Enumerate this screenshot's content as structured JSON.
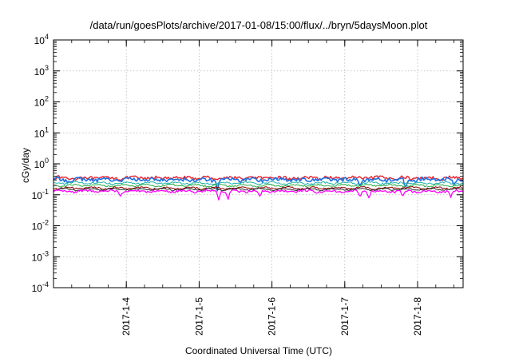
{
  "chart_data": {
    "type": "line",
    "title": "/data/run/goesPlots/archive/2017-01-08/15:00/flux/../bryn/5daysMoon.plot",
    "xlabel": "Coordinated Universal Time (UTC)",
    "ylabel": "cGy/day",
    "yscale": "log",
    "ylim": [
      0.0001,
      10000
    ],
    "yticks": [
      {
        "value": 0.0001,
        "base": "10",
        "exp": "-4"
      },
      {
        "value": 0.001,
        "base": "10",
        "exp": "-3"
      },
      {
        "value": 0.01,
        "base": "10",
        "exp": "-2"
      },
      {
        "value": 0.1,
        "base": "10",
        "exp": "-1"
      },
      {
        "value": 1,
        "base": "10",
        "exp": "0"
      },
      {
        "value": 10,
        "base": "10",
        "exp": "1"
      },
      {
        "value": 100,
        "base": "10",
        "exp": "2"
      },
      {
        "value": 1000,
        "base": "10",
        "exp": "3"
      },
      {
        "value": 10000,
        "base": "10",
        "exp": "4"
      }
    ],
    "xlim": [
      "2017-01-03T00:00",
      "2017-01-08T15:00"
    ],
    "xticks": [
      {
        "value": "2017-01-04T00:00",
        "label": "2017-1-4"
      },
      {
        "value": "2017-01-05T00:00",
        "label": "2017-1-5"
      },
      {
        "value": "2017-01-06T00:00",
        "label": "2017-1-6"
      },
      {
        "value": "2017-01-07T00:00",
        "label": "2017-1-7"
      },
      {
        "value": "2017-01-08T00:00",
        "label": "2017-1-8"
      }
    ],
    "grid": true,
    "series": [
      {
        "color": "#e8202a",
        "base": 0.35,
        "jitter": 0.12,
        "dips": [],
        "width": 1.4
      },
      {
        "color": "#1f6fe0",
        "base": 0.31,
        "jitter": 0.14,
        "dips": [
          [
            "2017-01-05T06:00",
            0.5
          ],
          [
            "2017-01-07T05:00",
            0.6
          ],
          [
            "2017-01-07T20:00",
            0.55
          ],
          [
            "2017-01-08T12:00",
            0.6
          ]
        ],
        "width": 1.6
      },
      {
        "color": "#20b2aa",
        "base": 0.24,
        "jitter": 0.07,
        "dips": [
          [
            "2017-01-07T05:00",
            0.8
          ]
        ],
        "width": 1.0
      },
      {
        "color": "#22aa44",
        "base": 0.2,
        "jitter": 0.06,
        "dips": [],
        "width": 1.0
      },
      {
        "color": "#8b0000",
        "base": 0.165,
        "jitter": 0.06,
        "dips": [],
        "width": 1.0
      },
      {
        "color": "#222222",
        "base": 0.15,
        "jitter": 0.05,
        "dips": [],
        "width": 1.0
      },
      {
        "color": "#ff00ff",
        "base": 0.13,
        "jitter": 0.08,
        "dips": [
          [
            "2017-01-03T22:00",
            0.7
          ],
          [
            "2017-01-05T06:30",
            0.55
          ],
          [
            "2017-01-05T09:30",
            0.5
          ],
          [
            "2017-01-05T20:00",
            0.6
          ],
          [
            "2017-01-07T05:00",
            0.55
          ],
          [
            "2017-01-07T08:00",
            0.6
          ],
          [
            "2017-01-07T19:00",
            0.6
          ],
          [
            "2017-01-08T11:00",
            0.55
          ]
        ],
        "width": 1.3
      }
    ]
  }
}
